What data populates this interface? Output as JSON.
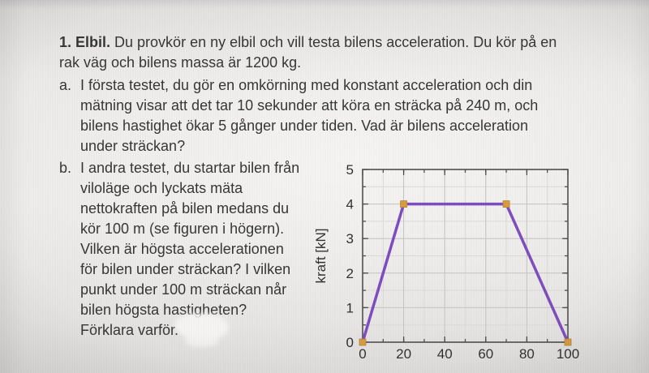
{
  "document": {
    "intro": {
      "number_title": "1. Elbil.",
      "text": " Du provkör en ny elbil och vill testa bilens acceleration. Du kör på en\nrak väg och bilens massa är 1200 kg."
    },
    "items": [
      {
        "marker": "a.",
        "text": "I första testet, du gör en omkörning med konstant acceleration och din\nmätning visar att det tar 10 sekunder att köra en sträcka på 240 m, och\nbilens hastighet ökar 5 gånger under tiden. Vad är bilens acceleration\nunder sträckan?"
      },
      {
        "marker": "b.",
        "text": "I andra testet, du startar bilen från\nviloläge och lyckats mäta\nnettokraften på bilen medans du\nkör 100 m (se figuren i högern).\nVilken är högsta accelerationen\nför bilen under sträckan? I vilken\npunkt under 100 m sträckan når\nbilen  högsta hastigheten?\nFörklara varför."
      }
    ]
  },
  "chart_data": {
    "type": "line",
    "title": "",
    "xlabel": "",
    "ylabel": "kraft [kN]",
    "x": [
      0,
      20,
      70,
      100
    ],
    "y": [
      0,
      4,
      4,
      0
    ],
    "xlim": [
      0,
      100
    ],
    "ylim": [
      0,
      5
    ],
    "xticks": [
      0,
      20,
      40,
      60,
      80,
      100
    ],
    "yticks": [
      0,
      1,
      2,
      3,
      4,
      5
    ],
    "minor_x_step": 10,
    "minor_y_step": 0.5,
    "grid": true,
    "legend": false,
    "line_color": "#7c4abe",
    "marker_color": "#d59b3e",
    "marker_shape": "square",
    "axis_color": "#4c4c4c",
    "major_grid_color": "#c9c7c4",
    "minor_grid_color": "#dcdad7",
    "tick_label_color": "#2e2e2e"
  }
}
